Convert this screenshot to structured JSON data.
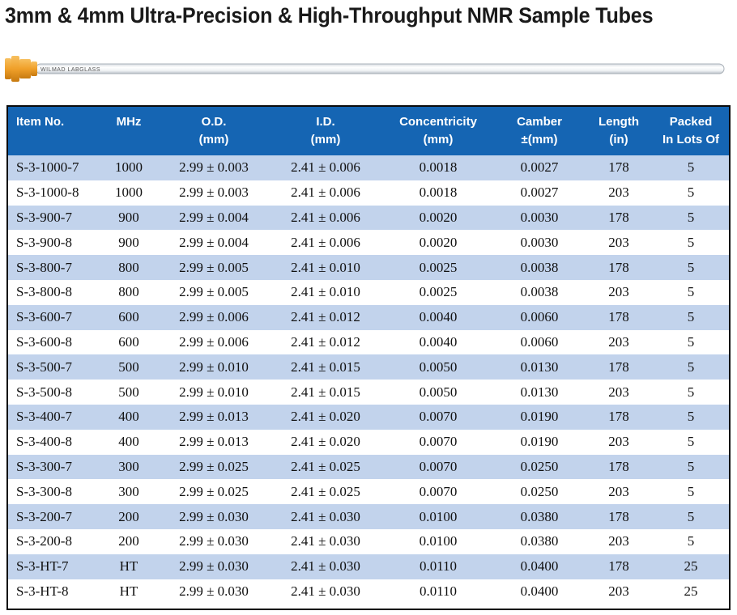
{
  "title": "3mm & 4mm Ultra-Precision & High-Throughput NMR Sample Tubes",
  "tube": {
    "label": "WILMAD LABGLASS",
    "cap_color": "#f0a02a"
  },
  "table": {
    "headers": [
      {
        "line1": "Item No.",
        "line2": ""
      },
      {
        "line1": "MHz",
        "line2": ""
      },
      {
        "line1": "O.D.",
        "line2": "(mm)"
      },
      {
        "line1": "I.D.",
        "line2": "(mm)"
      },
      {
        "line1": "Concentricity",
        "line2": "(mm)"
      },
      {
        "line1": "Camber",
        "line2": "±(mm)"
      },
      {
        "line1": "Length",
        "line2": "(in)"
      },
      {
        "line1": "Packed",
        "line2": "In Lots Of"
      }
    ],
    "rows": [
      [
        "S-3-1000-7",
        "1000",
        "2.99 ± 0.003",
        "2.41 ± 0.006",
        "0.0018",
        "0.0027",
        "178",
        "5"
      ],
      [
        "S-3-1000-8",
        "1000",
        "2.99 ± 0.003",
        "2.41 ± 0.006",
        "0.0018",
        "0.0027",
        "203",
        "5"
      ],
      [
        "S-3-900-7",
        "900",
        "2.99 ± 0.004",
        "2.41 ± 0.006",
        "0.0020",
        "0.0030",
        "178",
        "5"
      ],
      [
        "S-3-900-8",
        "900",
        "2.99 ± 0.004",
        "2.41 ± 0.006",
        "0.0020",
        "0.0030",
        "203",
        "5"
      ],
      [
        "S-3-800-7",
        "800",
        "2.99 ± 0.005",
        "2.41 ± 0.010",
        "0.0025",
        "0.0038",
        "178",
        "5"
      ],
      [
        "S-3-800-8",
        "800",
        "2.99 ± 0.005",
        "2.41 ± 0.010",
        "0.0025",
        "0.0038",
        "203",
        "5"
      ],
      [
        "S-3-600-7",
        "600",
        "2.99 ± 0.006",
        "2.41 ± 0.012",
        "0.0040",
        "0.0060",
        "178",
        "5"
      ],
      [
        "S-3-600-8",
        "600",
        "2.99 ± 0.006",
        "2.41 ± 0.012",
        "0.0040",
        "0.0060",
        "203",
        "5"
      ],
      [
        "S-3-500-7",
        "500",
        "2.99 ± 0.010",
        "2.41 ± 0.015",
        "0.0050",
        "0.0130",
        "178",
        "5"
      ],
      [
        "S-3-500-8",
        "500",
        "2.99 ± 0.010",
        "2.41 ± 0.015",
        "0.0050",
        "0.0130",
        "203",
        "5"
      ],
      [
        "S-3-400-7",
        "400",
        "2.99 ± 0.013",
        "2.41 ± 0.020",
        "0.0070",
        "0.0190",
        "178",
        "5"
      ],
      [
        "S-3-400-8",
        "400",
        "2.99 ± 0.013",
        "2.41 ± 0.020",
        "0.0070",
        "0.0190",
        "203",
        "5"
      ],
      [
        "S-3-300-7",
        "300",
        "2.99 ± 0.025",
        "2.41 ± 0.025",
        "0.0070",
        "0.0250",
        "178",
        "5"
      ],
      [
        "S-3-300-8",
        "300",
        "2.99 ± 0.025",
        "2.41 ± 0.025",
        "0.0070",
        "0.0250",
        "203",
        "5"
      ],
      [
        "S-3-200-7",
        "200",
        "2.99 ± 0.030",
        "2.41 ± 0.030",
        "0.0100",
        "0.0380",
        "178",
        "5"
      ],
      [
        "S-3-200-8",
        "200",
        "2.99 ± 0.030",
        "2.41 ± 0.030",
        "0.0100",
        "0.0380",
        "203",
        "5"
      ],
      [
        "S-3-HT-7",
        "HT",
        "2.99 ± 0.030",
        "2.41 ± 0.030",
        "0.0110",
        "0.0400",
        "178",
        "25"
      ],
      [
        "S-3-HT-8",
        "HT",
        "2.99 ± 0.030",
        "2.41 ± 0.030",
        "0.0110",
        "0.0400",
        "203",
        "25"
      ]
    ]
  },
  "colors": {
    "header_bg": "#1565b3",
    "row_stripe": "#c2d3ec",
    "border": "#0b0b0b"
  }
}
